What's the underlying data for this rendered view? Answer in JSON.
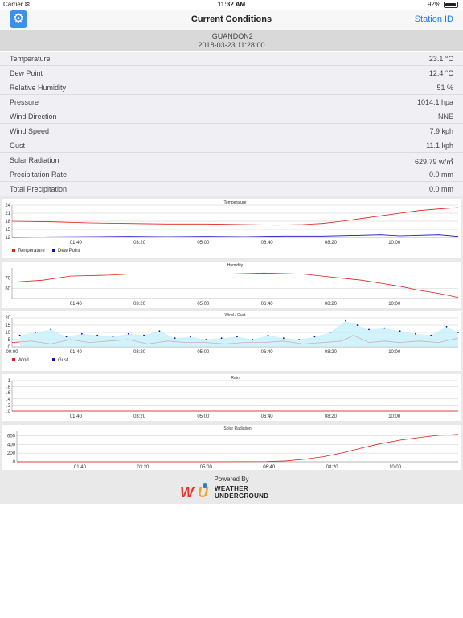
{
  "status": {
    "carrier": "Carrier",
    "time": "11:32 AM",
    "battery": "92%"
  },
  "nav": {
    "title": "Current Conditions",
    "station_button": "Station ID"
  },
  "station": {
    "id": "IGUANDON2",
    "datetime": "2018-03-23 11:28:00"
  },
  "conditions": [
    {
      "label": "Temperature",
      "value": "23.1 °C"
    },
    {
      "label": "Dew Point",
      "value": "12.4 °C"
    },
    {
      "label": "Relative Humidity",
      "value": "51 %"
    },
    {
      "label": "Pressure",
      "value": "1014.1 hpa"
    },
    {
      "label": "Wind Direction",
      "value": "NNE"
    },
    {
      "label": "Wind Speed",
      "value": "7.9 kph"
    },
    {
      "label": "Gust",
      "value": "11.1 kph"
    },
    {
      "label": "Solar Radiation",
      "value": "629.79 w/㎡"
    },
    {
      "label": "Precipitation Rate",
      "value": "0.0 mm"
    },
    {
      "label": "Total Precipitation",
      "value": "0.0 mm"
    }
  ],
  "footer": {
    "powered_by": "Powered By",
    "brand_line1": "WEATHER",
    "brand_line2": "UNDERGROUND"
  },
  "colors": {
    "accent": "#1a7cf2",
    "red": "#e0201a",
    "blue": "#1010c0",
    "gust_fill": "#bfeefa"
  },
  "chart_data": [
    {
      "type": "line",
      "title": "Temperature",
      "x_ticks": [
        "01:40",
        "03:20",
        "05:00",
        "06:40",
        "08:20",
        "10:00"
      ],
      "x_range": [
        0,
        11.5
      ],
      "ylim": [
        12,
        24
      ],
      "y_ticks": [
        12,
        15,
        18,
        21,
        24
      ],
      "legend": [
        "Temperature",
        "Dew Point"
      ],
      "series": [
        {
          "name": "Temperature",
          "color": "#e0201a",
          "points": [
            [
              0,
              18
            ],
            [
              1,
              17.8
            ],
            [
              2,
              17.4
            ],
            [
              3,
              17.2
            ],
            [
              4,
              17.0
            ],
            [
              5,
              17.0
            ],
            [
              6,
              16.8
            ],
            [
              6.8,
              16.6
            ],
            [
              7.5,
              16.8
            ],
            [
              8,
              17.2
            ],
            [
              8.5,
              18
            ],
            [
              9,
              19
            ],
            [
              9.5,
              20
            ],
            [
              10,
              21
            ],
            [
              10.5,
              22
            ],
            [
              11,
              22.6
            ],
            [
              11.5,
              23.1
            ]
          ]
        },
        {
          "name": "Dew Point",
          "color": "#1010c0",
          "points": [
            [
              0,
              12.0
            ],
            [
              1,
              12.2
            ],
            [
              2,
              12.3
            ],
            [
              3,
              12.4
            ],
            [
              4,
              12.3
            ],
            [
              5,
              12.4
            ],
            [
              6,
              12.3
            ],
            [
              7,
              12.5
            ],
            [
              8,
              12.5
            ],
            [
              9,
              12.8
            ],
            [
              9.5,
              13.0
            ],
            [
              10,
              12.6
            ],
            [
              10.5,
              12.8
            ],
            [
              11,
              13.0
            ],
            [
              11.5,
              12.4
            ]
          ]
        }
      ]
    },
    {
      "type": "line",
      "title": "Humidity",
      "x_ticks": [
        "01:40",
        "03:20",
        "05:00",
        "06:40",
        "08:20",
        "10:00"
      ],
      "x_range": [
        0,
        11.5
      ],
      "ylim": [
        50,
        80
      ],
      "y_ticks": [
        60,
        70
      ],
      "series": [
        {
          "name": "Humidity",
          "color": "#e0201a",
          "points": [
            [
              0,
              66
            ],
            [
              0.8,
              68
            ],
            [
              1.5,
              72
            ],
            [
              2.5,
              73
            ],
            [
              3,
              74
            ],
            [
              4.5,
              74
            ],
            [
              5.5,
              74
            ],
            [
              6.5,
              75
            ],
            [
              7.5,
              74
            ],
            [
              8,
              72
            ],
            [
              8.5,
              70
            ],
            [
              9,
              68
            ],
            [
              9.5,
              65
            ],
            [
              10,
              62
            ],
            [
              10.5,
              58
            ],
            [
              11,
              55
            ],
            [
              11.5,
              51
            ]
          ]
        }
      ]
    },
    {
      "type": "line",
      "title": "Wind / Gust",
      "x_ticks": [
        "00:00",
        "01:40",
        "03:20",
        "05:00",
        "06:40",
        "08:20",
        "10:00"
      ],
      "x_range": [
        0,
        11.5
      ],
      "ylim": [
        0,
        20
      ],
      "y_ticks": [
        0,
        5,
        10,
        15,
        20
      ],
      "legend": [
        "Wind",
        "Gust"
      ],
      "series": [
        {
          "name": "Wind",
          "color": "#e0201a",
          "points": [
            [
              0,
              3
            ],
            [
              0.5,
              4
            ],
            [
              1,
              2
            ],
            [
              1.5,
              5
            ],
            [
              2,
              3
            ],
            [
              2.5,
              4
            ],
            [
              3,
              5
            ],
            [
              3.5,
              2
            ],
            [
              4,
              4
            ],
            [
              4.5,
              3
            ],
            [
              5,
              3
            ],
            [
              5.5,
              2
            ],
            [
              6,
              3
            ],
            [
              6.5,
              3
            ],
            [
              7,
              4
            ],
            [
              7.5,
              2
            ],
            [
              8,
              3
            ],
            [
              8.5,
              4
            ],
            [
              8.8,
              8
            ],
            [
              9.2,
              3
            ],
            [
              9.6,
              4
            ],
            [
              10,
              3
            ],
            [
              10.5,
              4
            ],
            [
              11,
              3
            ],
            [
              11.5,
              6
            ]
          ]
        },
        {
          "name": "Gust",
          "color": "#1010c0",
          "points": [
            [
              0.2,
              8
            ],
            [
              0.6,
              10
            ],
            [
              1.0,
              12
            ],
            [
              1.4,
              7
            ],
            [
              1.8,
              9
            ],
            [
              2.2,
              8
            ],
            [
              2.6,
              7
            ],
            [
              3.0,
              9
            ],
            [
              3.4,
              8
            ],
            [
              3.8,
              11
            ],
            [
              4.2,
              6
            ],
            [
              4.6,
              7
            ],
            [
              5.0,
              5
            ],
            [
              5.4,
              6
            ],
            [
              5.8,
              7
            ],
            [
              6.2,
              5
            ],
            [
              6.6,
              8
            ],
            [
              7.0,
              6
            ],
            [
              7.4,
              5
            ],
            [
              7.8,
              7
            ],
            [
              8.2,
              10
            ],
            [
              8.6,
              18
            ],
            [
              8.9,
              15
            ],
            [
              9.2,
              12
            ],
            [
              9.6,
              13
            ],
            [
              10.0,
              11
            ],
            [
              10.4,
              9
            ],
            [
              10.8,
              8
            ],
            [
              11.2,
              14
            ],
            [
              11.5,
              10
            ]
          ]
        }
      ]
    },
    {
      "type": "line",
      "title": "Rain",
      "x_ticks": [
        "01:40",
        "03:20",
        "05:00",
        "06:40",
        "08:20",
        "10:00"
      ],
      "x_range": [
        0,
        11.5
      ],
      "ylim": [
        0,
        1
      ],
      "y_ticks": [
        ".0",
        ".2",
        ".4",
        ".6",
        ".8",
        "1"
      ],
      "series": [
        {
          "name": "Rain",
          "color": "#e0201a",
          "points": [
            [
              0,
              0
            ],
            [
              11.5,
              0
            ]
          ]
        }
      ]
    },
    {
      "type": "line",
      "title": "Solar Radiation",
      "x_ticks": [
        "01:40",
        "03:20",
        "05:00",
        "06:40",
        "08:20",
        "10:00"
      ],
      "x_range": [
        0,
        11.5
      ],
      "ylim": [
        0,
        700
      ],
      "y_ticks": [
        0,
        200,
        400,
        600
      ],
      "series": [
        {
          "name": "Solar Radiation",
          "color": "#e0201a",
          "points": [
            [
              0,
              0
            ],
            [
              5,
              0
            ],
            [
              6.5,
              5
            ],
            [
              7,
              20
            ],
            [
              7.5,
              60
            ],
            [
              8,
              120
            ],
            [
              8.5,
              210
            ],
            [
              9,
              320
            ],
            [
              9.5,
              420
            ],
            [
              10,
              500
            ],
            [
              10.5,
              560
            ],
            [
              11,
              610
            ],
            [
              11.3,
              620
            ],
            [
              11.5,
              630
            ]
          ]
        }
      ]
    }
  ]
}
